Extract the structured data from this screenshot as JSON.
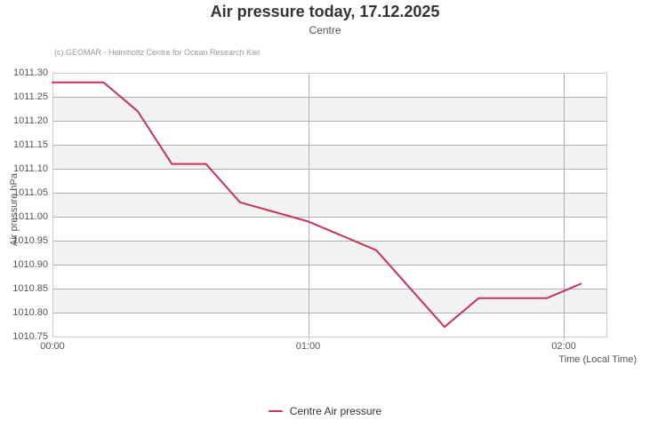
{
  "chart_data": {
    "type": "line",
    "title": "Air pressure today, 17.12.2025",
    "subtitle": "Centre",
    "credits": "(c) GEOMAR - Helmholtz Centre for Ocean Research Kiel",
    "xlabel": "Time (Local Time)",
    "ylabel": "Air pressure hPa",
    "xlim_minutes": [
      0,
      130
    ],
    "ylim": [
      1010.75,
      1011.3
    ],
    "y_ticks": [
      1011.3,
      1011.25,
      1011.2,
      1011.15,
      1011.1,
      1011.05,
      1011.0,
      1010.95,
      1010.9,
      1010.85,
      1010.8,
      1010.75
    ],
    "y_tick_labels": [
      "1011.30",
      "1011.25",
      "1011.20",
      "1011.15",
      "1011.10",
      "1011.05",
      "1011.00",
      "1010.95",
      "1010.90",
      "1010.85",
      "1010.80",
      "1010.75"
    ],
    "x_ticks": [
      {
        "minutes": 0,
        "label": "00:00"
      },
      {
        "minutes": 60,
        "label": "01:00"
      },
      {
        "minutes": 120,
        "label": "02:00"
      }
    ],
    "grid": true,
    "alternating_row_bands": true,
    "legend_position": "bottom-center",
    "series": [
      {
        "name": "Centre Air pressure",
        "color": "#C73359",
        "times": [
          "00:00",
          "00:12",
          "00:20",
          "00:28",
          "00:36",
          "00:44",
          "01:00",
          "01:16",
          "01:32",
          "01:40",
          "01:56",
          "02:04"
        ],
        "x_minutes": [
          0,
          12,
          20,
          28,
          36,
          44,
          60,
          76,
          92,
          100,
          116,
          124
        ],
        "values": [
          1011.28,
          1011.28,
          1011.22,
          1011.11,
          1011.11,
          1011.03,
          1010.99,
          1010.93,
          1010.77,
          1010.83,
          1010.83,
          1010.86
        ]
      }
    ],
    "colors": {
      "background": "#ffffff",
      "band": "#f2f2f2",
      "grid": "#b0b0b0",
      "axis_line": "#c9c9c9",
      "title": "#333333",
      "subtitle": "#555555",
      "tick_labels": "#555555",
      "credits": "#999999",
      "legend_text": "#333333"
    }
  }
}
